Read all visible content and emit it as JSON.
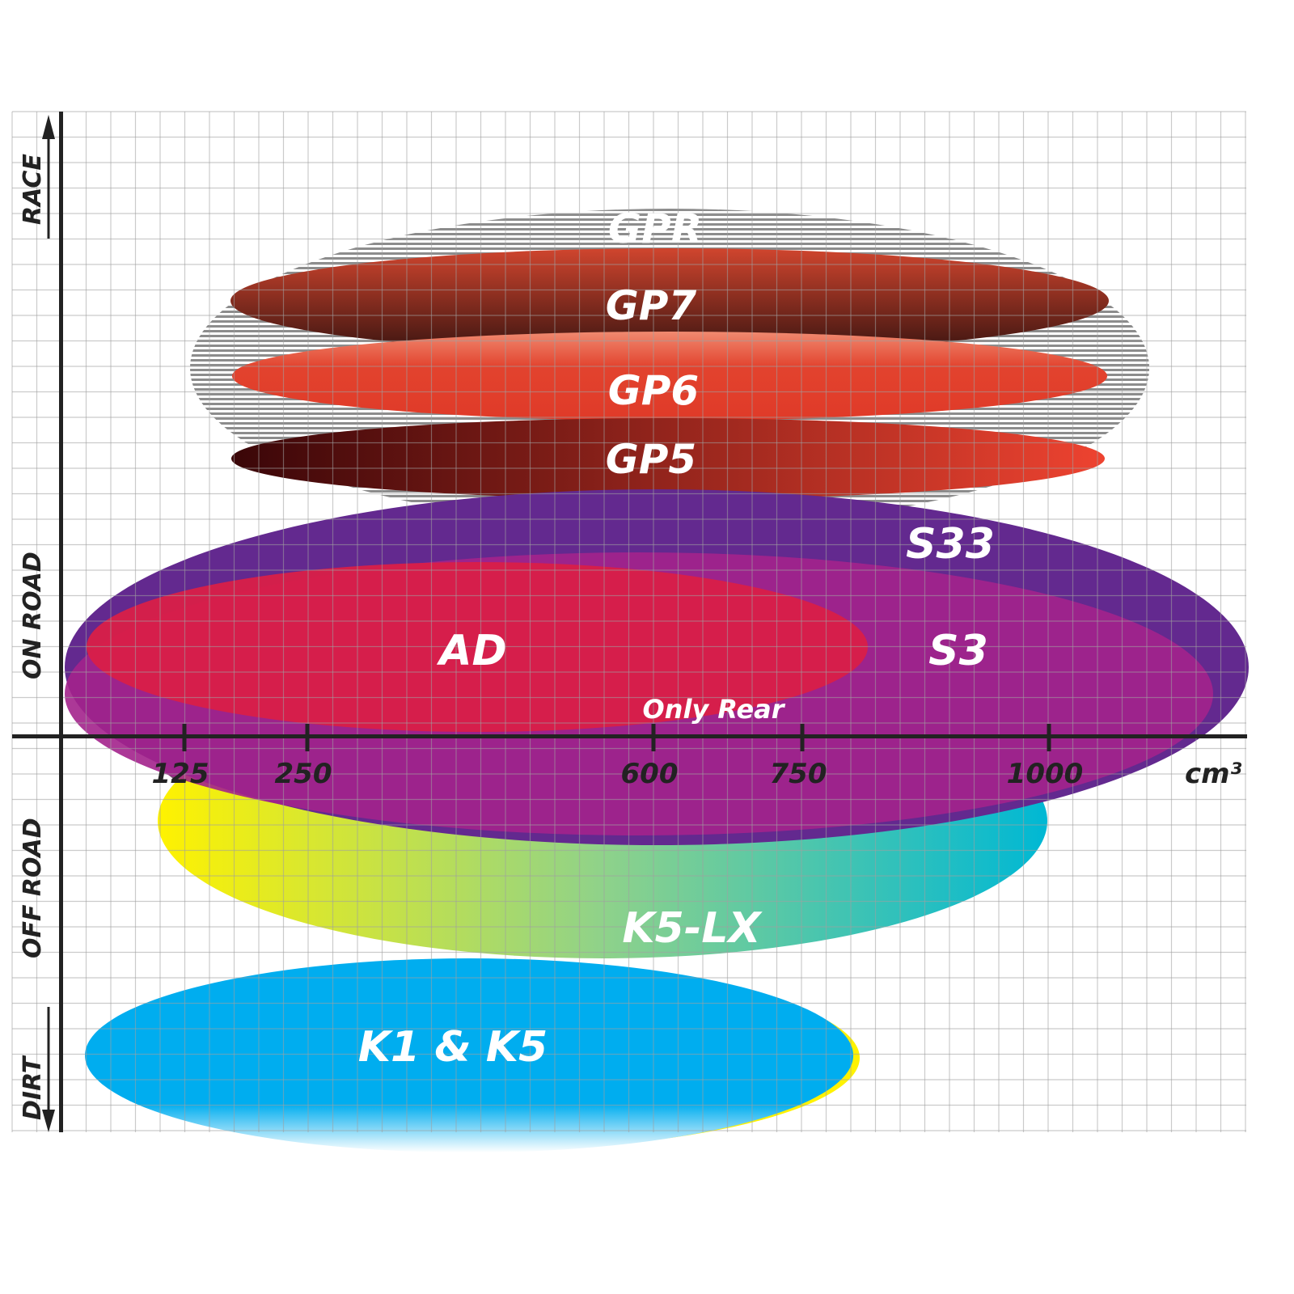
{
  "chart_data": {
    "type": "positioning-ellipses",
    "xlabel": "cm³",
    "x_ticks": [
      125,
      250,
      600,
      750,
      1000
    ],
    "y_labels": {
      "race": "RACE",
      "on_road": "ON ROAD",
      "off_road": "OFF ROAD",
      "dirt": "DIRT"
    },
    "grid": true,
    "products": [
      {
        "name": "GPR",
        "color": "#9a9a9a"
      },
      {
        "name": "GP7",
        "color": "#a3402c"
      },
      {
        "name": "GP6",
        "color": "#e2432e"
      },
      {
        "name": "GP5",
        "color": "#8a1a14"
      },
      {
        "name": "K5-LX",
        "color": "#00b8d4"
      },
      {
        "name": "S33",
        "color": "#63298f"
      },
      {
        "name": "S3",
        "color": "#a3228c"
      },
      {
        "name": "AD",
        "color": "#d91f48"
      },
      {
        "name": "K1 & K5",
        "color": "#00adef"
      }
    ],
    "annotation": "Only Rear"
  }
}
